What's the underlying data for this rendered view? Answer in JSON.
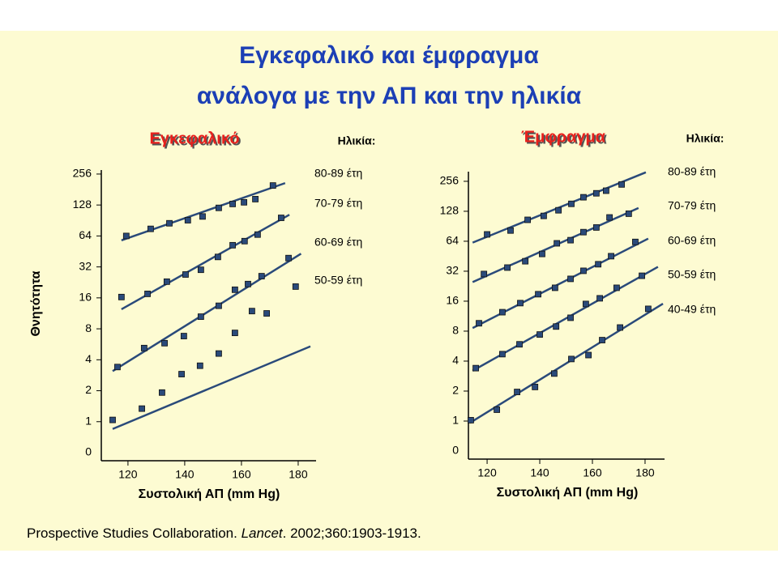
{
  "title": [
    "Εγκεφαλικό και έμφραγμα",
    "ανάλογα με την ΑΠ και την ηλικία"
  ],
  "footer": [
    "Prospective Studies Collaboration. ",
    "Lancet",
    ". 2002;360:1903-1913."
  ],
  "chart_data": [
    {
      "type": "scatter",
      "title": "Εγκεφαλικό",
      "legend_title": "Ηλικία:",
      "y_label": "Θνητότητα",
      "x_label": "Συστολική ΑΠ (mm Hg)",
      "log_base": 2,
      "xlim": [
        110.6,
        186.3
      ],
      "xticks": [
        120,
        140,
        160,
        180
      ],
      "ylim": [
        0.5,
        280
      ],
      "yticks": [
        1,
        2,
        4,
        8,
        16,
        32,
        64,
        128,
        256
      ],
      "y_origin_label": "0",
      "series": [
        {
          "name": "80-89 έτη",
          "color": "#2a4a7a",
          "x": [
            119.4,
            128,
            134.6,
            141.1,
            146.3,
            152,
            156.9,
            160.9,
            164.9,
            171.1
          ],
          "values": [
            64,
            75,
            85,
            91,
            99,
            120,
            131,
            136,
            146,
            198
          ],
          "fit_x": [
            117.7,
            175.4
          ],
          "fit_y": [
            58,
            209
          ]
        },
        {
          "name": "70-79 έτη",
          "color": "#2a4a7a",
          "x": [
            117.7,
            126.9,
            133.7,
            140.3,
            145.7,
            151.7,
            156.9,
            161.1,
            165.7,
            174
          ],
          "values": [
            16.3,
            17.5,
            23,
            27,
            30,
            40,
            52,
            57,
            66,
            96
          ],
          "fit_x": [
            117.7,
            176.9
          ],
          "fit_y": [
            12.4,
            103
          ]
        },
        {
          "name": "60-69 έτη",
          "color": "#2a4a7a",
          "x": [
            116.3,
            125.7,
            132.9,
            139.7,
            145.7,
            152,
            157.7,
            162.3,
            167.1,
            176.6
          ],
          "values": [
            3.4,
            5.2,
            5.8,
            6.8,
            10.5,
            13.4,
            19.2,
            21.8,
            26,
            39
          ],
          "fit_x": [
            114.6,
            181
          ],
          "fit_y": [
            3.1,
            43
          ]
        },
        {
          "name": "50-59 έτη",
          "color": "#2a4a7a",
          "x": [
            114.6,
            124.9,
            132,
            138.9,
            145.4,
            152,
            157.7,
            163.7,
            168.9,
            179.1
          ],
          "values": [
            1.04,
            1.34,
            1.92,
            2.9,
            3.5,
            4.6,
            7.3,
            11.9,
            11.3,
            20.6
          ],
          "fit_x": [
            114.6,
            184.3
          ],
          "fit_y": [
            0.85,
            5.4
          ]
        }
      ]
    },
    {
      "type": "scatter",
      "title": "Έμφραγμα",
      "legend_title": "Ηλικία:",
      "x_label": "Συστολική ΑΠ (mm Hg)",
      "log_base": 2,
      "xlim": [
        112.9,
        187.4
      ],
      "xticks": [
        120,
        140,
        160,
        180
      ],
      "ylim": [
        0.5,
        320
      ],
      "yticks": [
        1,
        2,
        4,
        8,
        16,
        32,
        64,
        128,
        256
      ],
      "y_origin_label": "0",
      "series": [
        {
          "name": "80-89 έτη",
          "color": "#2a4a7a",
          "x": [
            120,
            128.9,
            135.4,
            141.5,
            147.1,
            152,
            156.6,
            161.5,
            165.2,
            171.1
          ],
          "values": [
            75,
            82,
            105,
            115,
            131,
            152,
            177,
            194,
            206,
            238
          ],
          "fit_x": [
            114.5,
            180.3
          ],
          "fit_y": [
            62,
            315
          ]
        },
        {
          "name": "70-79 έτη",
          "color": "#2a4a7a",
          "x": [
            118.8,
            127.7,
            134.5,
            140.9,
            146.5,
            151.7,
            156.6,
            161.5,
            166.5,
            173.8
          ],
          "values": [
            30,
            34.8,
            40.3,
            47.7,
            61,
            65.6,
            79,
            88,
            111,
            121
          ],
          "fit_x": [
            114.5,
            177.5
          ],
          "fit_y": [
            24.9,
            138
          ]
        },
        {
          "name": "60-69 έτη",
          "color": "#2a4a7a",
          "x": [
            116.9,
            125.8,
            132.6,
            139.4,
            145.8,
            151.7,
            156.6,
            162.2,
            167.1,
            176.3
          ],
          "values": [
            9.6,
            12.4,
            15.3,
            18.8,
            21.8,
            26.8,
            32.3,
            37.6,
            45.3,
            63
          ],
          "fit_x": [
            114.5,
            181.2
          ],
          "fit_y": [
            8.6,
            68
          ]
        },
        {
          "name": "50-59 έτη",
          "color": "#2a4a7a",
          "x": [
            115.7,
            125.8,
            132.3,
            140,
            146.2,
            151.7,
            157.5,
            162.8,
            169.2,
            178.8
          ],
          "values": [
            3.4,
            4.7,
            5.9,
            7.4,
            8.9,
            10.9,
            15,
            17.1,
            21.8,
            28.8
          ],
          "fit_x": [
            114.5,
            184.9
          ],
          "fit_y": [
            3.2,
            35.4
          ]
        },
        {
          "name": "40-49 έτη",
          "color": "#2a4a7a",
          "x": [
            113.8,
            123.7,
            131.4,
            138.2,
            145.5,
            152,
            158.5,
            163.7,
            170.5,
            181.2
          ],
          "values": [
            1.02,
            1.3,
            1.96,
            2.2,
            3,
            4.2,
            4.6,
            6.5,
            8.7,
            13.4
          ],
          "fit_x": [
            113.5,
            186.8
          ],
          "fit_y": [
            0.96,
            15.1
          ]
        }
      ]
    }
  ]
}
